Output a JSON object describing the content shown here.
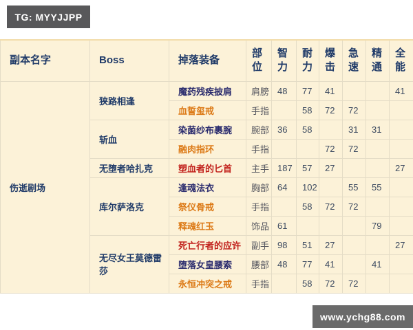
{
  "badges": {
    "tg": "TG: MYYJJPP",
    "site": "www.ychg88.com"
  },
  "colors": {
    "table_bg": "#fcf2d8",
    "header_text": "#1f3a68",
    "item_navy": "#2b2c6e",
    "item_orange": "#dc7a17",
    "item_red": "#c1201b",
    "badge_bg": "#58585a"
  },
  "table": {
    "headers": [
      "副本名字",
      "Boss",
      "掉落装备",
      "部位",
      "智力",
      "耐力",
      "爆击",
      "急速",
      "精通",
      "全能"
    ],
    "dungeon": "伤逝剧场",
    "bosses": [
      {
        "name": "狭路相逢",
        "items": [
          {
            "name": "魔药残疾披肩",
            "quality": "navy",
            "slot": "肩膀",
            "stats": [
              "48",
              "77",
              "41",
              "",
              "",
              "41"
            ]
          },
          {
            "name": "血誓玺戒",
            "quality": "orange",
            "slot": "手指",
            "stats": [
              "",
              "58",
              "72",
              "72",
              "",
              ""
            ]
          }
        ]
      },
      {
        "name": "斩血",
        "items": [
          {
            "name": "染菌纱布裹腕",
            "quality": "navy",
            "slot": "腕部",
            "stats": [
              "36",
              "58",
              "",
              "31",
              "31",
              ""
            ]
          },
          {
            "name": "融肉指环",
            "quality": "orange",
            "slot": "手指",
            "stats": [
              "",
              "",
              "72",
              "72",
              "",
              ""
            ]
          }
        ]
      },
      {
        "name": "无堕者哈扎克",
        "items": [
          {
            "name": "塑血者的匕首",
            "quality": "red",
            "slot": "主手",
            "stats": [
              "187",
              "57",
              "27",
              "",
              "",
              "27"
            ]
          }
        ]
      },
      {
        "name": "库尔萨洛克",
        "items": [
          {
            "name": "逢魂法衣",
            "quality": "navy",
            "slot": "胸部",
            "stats": [
              "64",
              "102",
              "",
              "55",
              "55",
              ""
            ]
          },
          {
            "name": "祭仪骨戒",
            "quality": "orange",
            "slot": "手指",
            "stats": [
              "",
              "58",
              "72",
              "72",
              "",
              ""
            ]
          },
          {
            "name": "释魂红玉",
            "quality": "orange",
            "slot": "饰品",
            "stats": [
              "61",
              "",
              "",
              "",
              "79",
              ""
            ]
          }
        ]
      },
      {
        "name": "无尽女王莫德雷莎",
        "items": [
          {
            "name": "死亡行者的应许",
            "quality": "red",
            "slot": "副手",
            "stats": [
              "98",
              "51",
              "27",
              "",
              "",
              "27"
            ]
          },
          {
            "name": "堕落女皇腰索",
            "quality": "navy",
            "slot": "腰部",
            "stats": [
              "48",
              "77",
              "41",
              "",
              "41",
              ""
            ]
          },
          {
            "name": "永恒冲突之戒",
            "quality": "orange",
            "slot": "手指",
            "stats": [
              "",
              "58",
              "72",
              "72",
              "",
              ""
            ]
          }
        ]
      }
    ]
  }
}
